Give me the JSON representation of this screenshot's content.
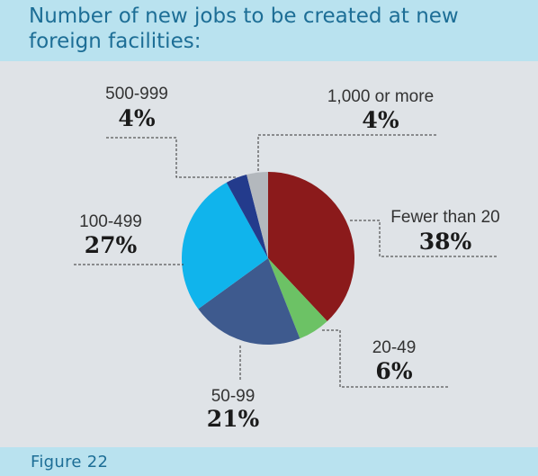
{
  "header": {
    "title": "Number of new jobs to be created at new foreign facilities:"
  },
  "footer": {
    "figure_label": "Figure 22"
  },
  "chart_data": {
    "type": "pie",
    "title": "Number of new jobs to be created at new foreign facilities:",
    "start_angle_deg": -90,
    "direction": "clockwise",
    "slices": [
      {
        "label": "Fewer than 20",
        "value": 38,
        "value_label": "38%",
        "color": "#8b1a1b"
      },
      {
        "label": "20-49",
        "value": 6,
        "value_label": "6%",
        "color": "#6cc265"
      },
      {
        "label": "50-99",
        "value": 21,
        "value_label": "21%",
        "color": "#3e5a8e"
      },
      {
        "label": "100-499",
        "value": 27,
        "value_label": "27%",
        "color": "#10b4ec"
      },
      {
        "label": "500-999",
        "value": 4,
        "value_label": "4%",
        "color": "#233b8c"
      },
      {
        "label": "1,000 or more",
        "value": 4,
        "value_label": "4%",
        "color": "#b3b8bd"
      }
    ]
  }
}
